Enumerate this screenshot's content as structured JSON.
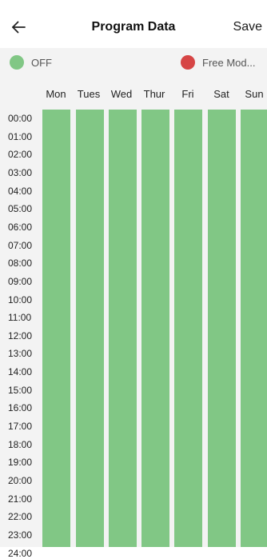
{
  "header": {
    "title": "Program Data",
    "save_label": "Save",
    "back_icon": "arrow-left-icon"
  },
  "legend": {
    "items": [
      {
        "label": "OFF",
        "color": "#81c785"
      },
      {
        "label": "Free Mod...",
        "color": "#d64545"
      }
    ]
  },
  "schedule": {
    "days": [
      "Mon",
      "Tues",
      "Wed",
      "Thur",
      "Fri",
      "Sat",
      "Sun"
    ],
    "hours": [
      "00:00",
      "01:00",
      "02:00",
      "03:00",
      "04:00",
      "05:00",
      "06:00",
      "07:00",
      "08:00",
      "09:00",
      "10:00",
      "11:00",
      "12:00",
      "13:00",
      "14:00",
      "15:00",
      "16:00",
      "17:00",
      "18:00",
      "19:00",
      "20:00",
      "21:00",
      "22:00",
      "23:00",
      "24:00"
    ],
    "column_color": "#81c785"
  }
}
